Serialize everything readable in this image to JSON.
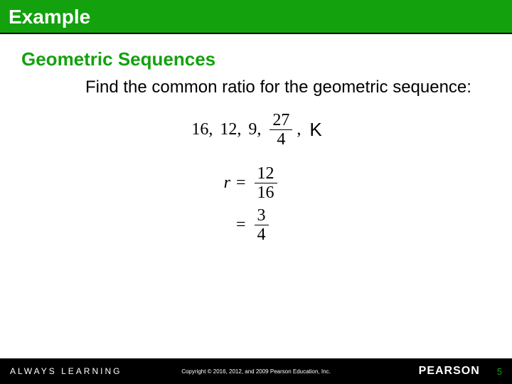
{
  "header": {
    "title": "Example"
  },
  "content": {
    "title": "Geometric Sequences",
    "prompt": "Find the common ratio for the geometric sequence:"
  },
  "sequence": {
    "t1": "16,",
    "t2": "12,",
    "t3": "9,",
    "frac_num": "27",
    "frac_den": "4",
    "trail": ",",
    "ellipsis": "K"
  },
  "work": {
    "var": "r",
    "eq": "=",
    "step1_num": "12",
    "step1_den": "16",
    "step2_num": "3",
    "step2_den": "4"
  },
  "footer": {
    "left": "ALWAYS LEARNING",
    "copyright": "Copyright © 2016, 2012, and 2009 Pearson Education, Inc.",
    "brand": "PEARSON",
    "page": "5"
  },
  "colors": {
    "green": "#13a10e",
    "black": "#000000",
    "white": "#ffffff"
  }
}
